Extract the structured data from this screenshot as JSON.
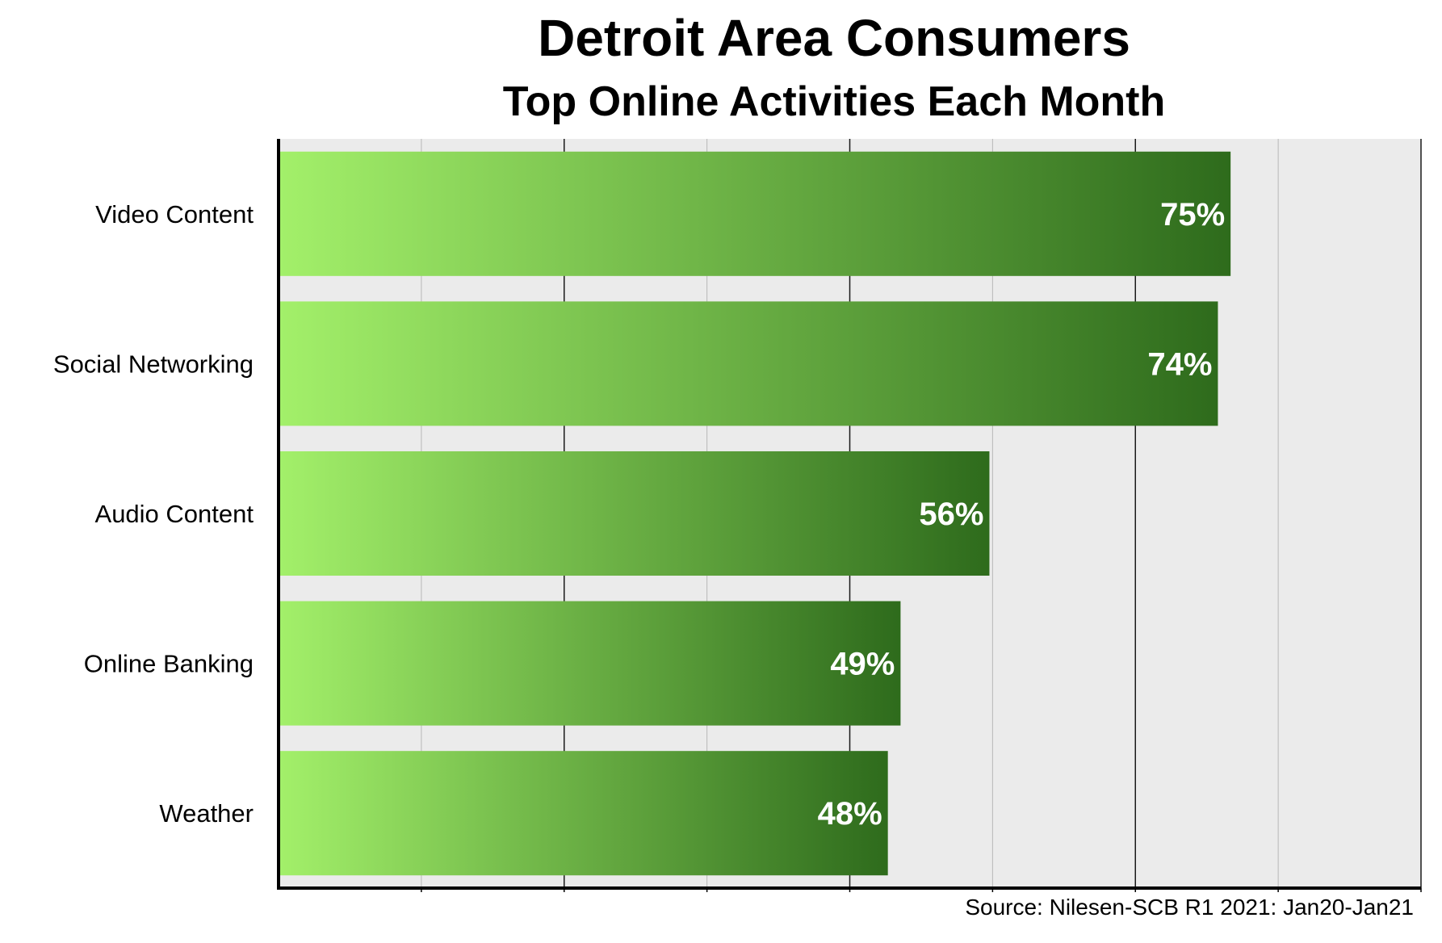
{
  "title": "Detroit Area Consumers",
  "subtitle": "Top Online Activities Each Month",
  "source": "Source: Nilesen-SCB R1 2021: Jan20-Jan21",
  "colors": {
    "bar_light": "#a3f06a",
    "bar_dark": "#2e6b1c",
    "plot_background": "#ebebeb",
    "axis": "#000000",
    "value_label": "#ffffff"
  },
  "chart_data": {
    "type": "bar",
    "orientation": "horizontal",
    "categories": [
      "Video Content",
      "Social Networking",
      "Audio Content",
      "Online Banking",
      "Weather"
    ],
    "values": [
      75,
      74,
      56,
      49,
      48
    ],
    "value_labels": [
      "75%",
      "74%",
      "56%",
      "49%",
      "48%"
    ],
    "title": "Detroit Area Consumers",
    "subtitle": "Top Online Activities Each Month",
    "xlim": [
      0,
      90
    ],
    "x_gridline_step": 11.25,
    "grid": true,
    "legend": "none"
  }
}
